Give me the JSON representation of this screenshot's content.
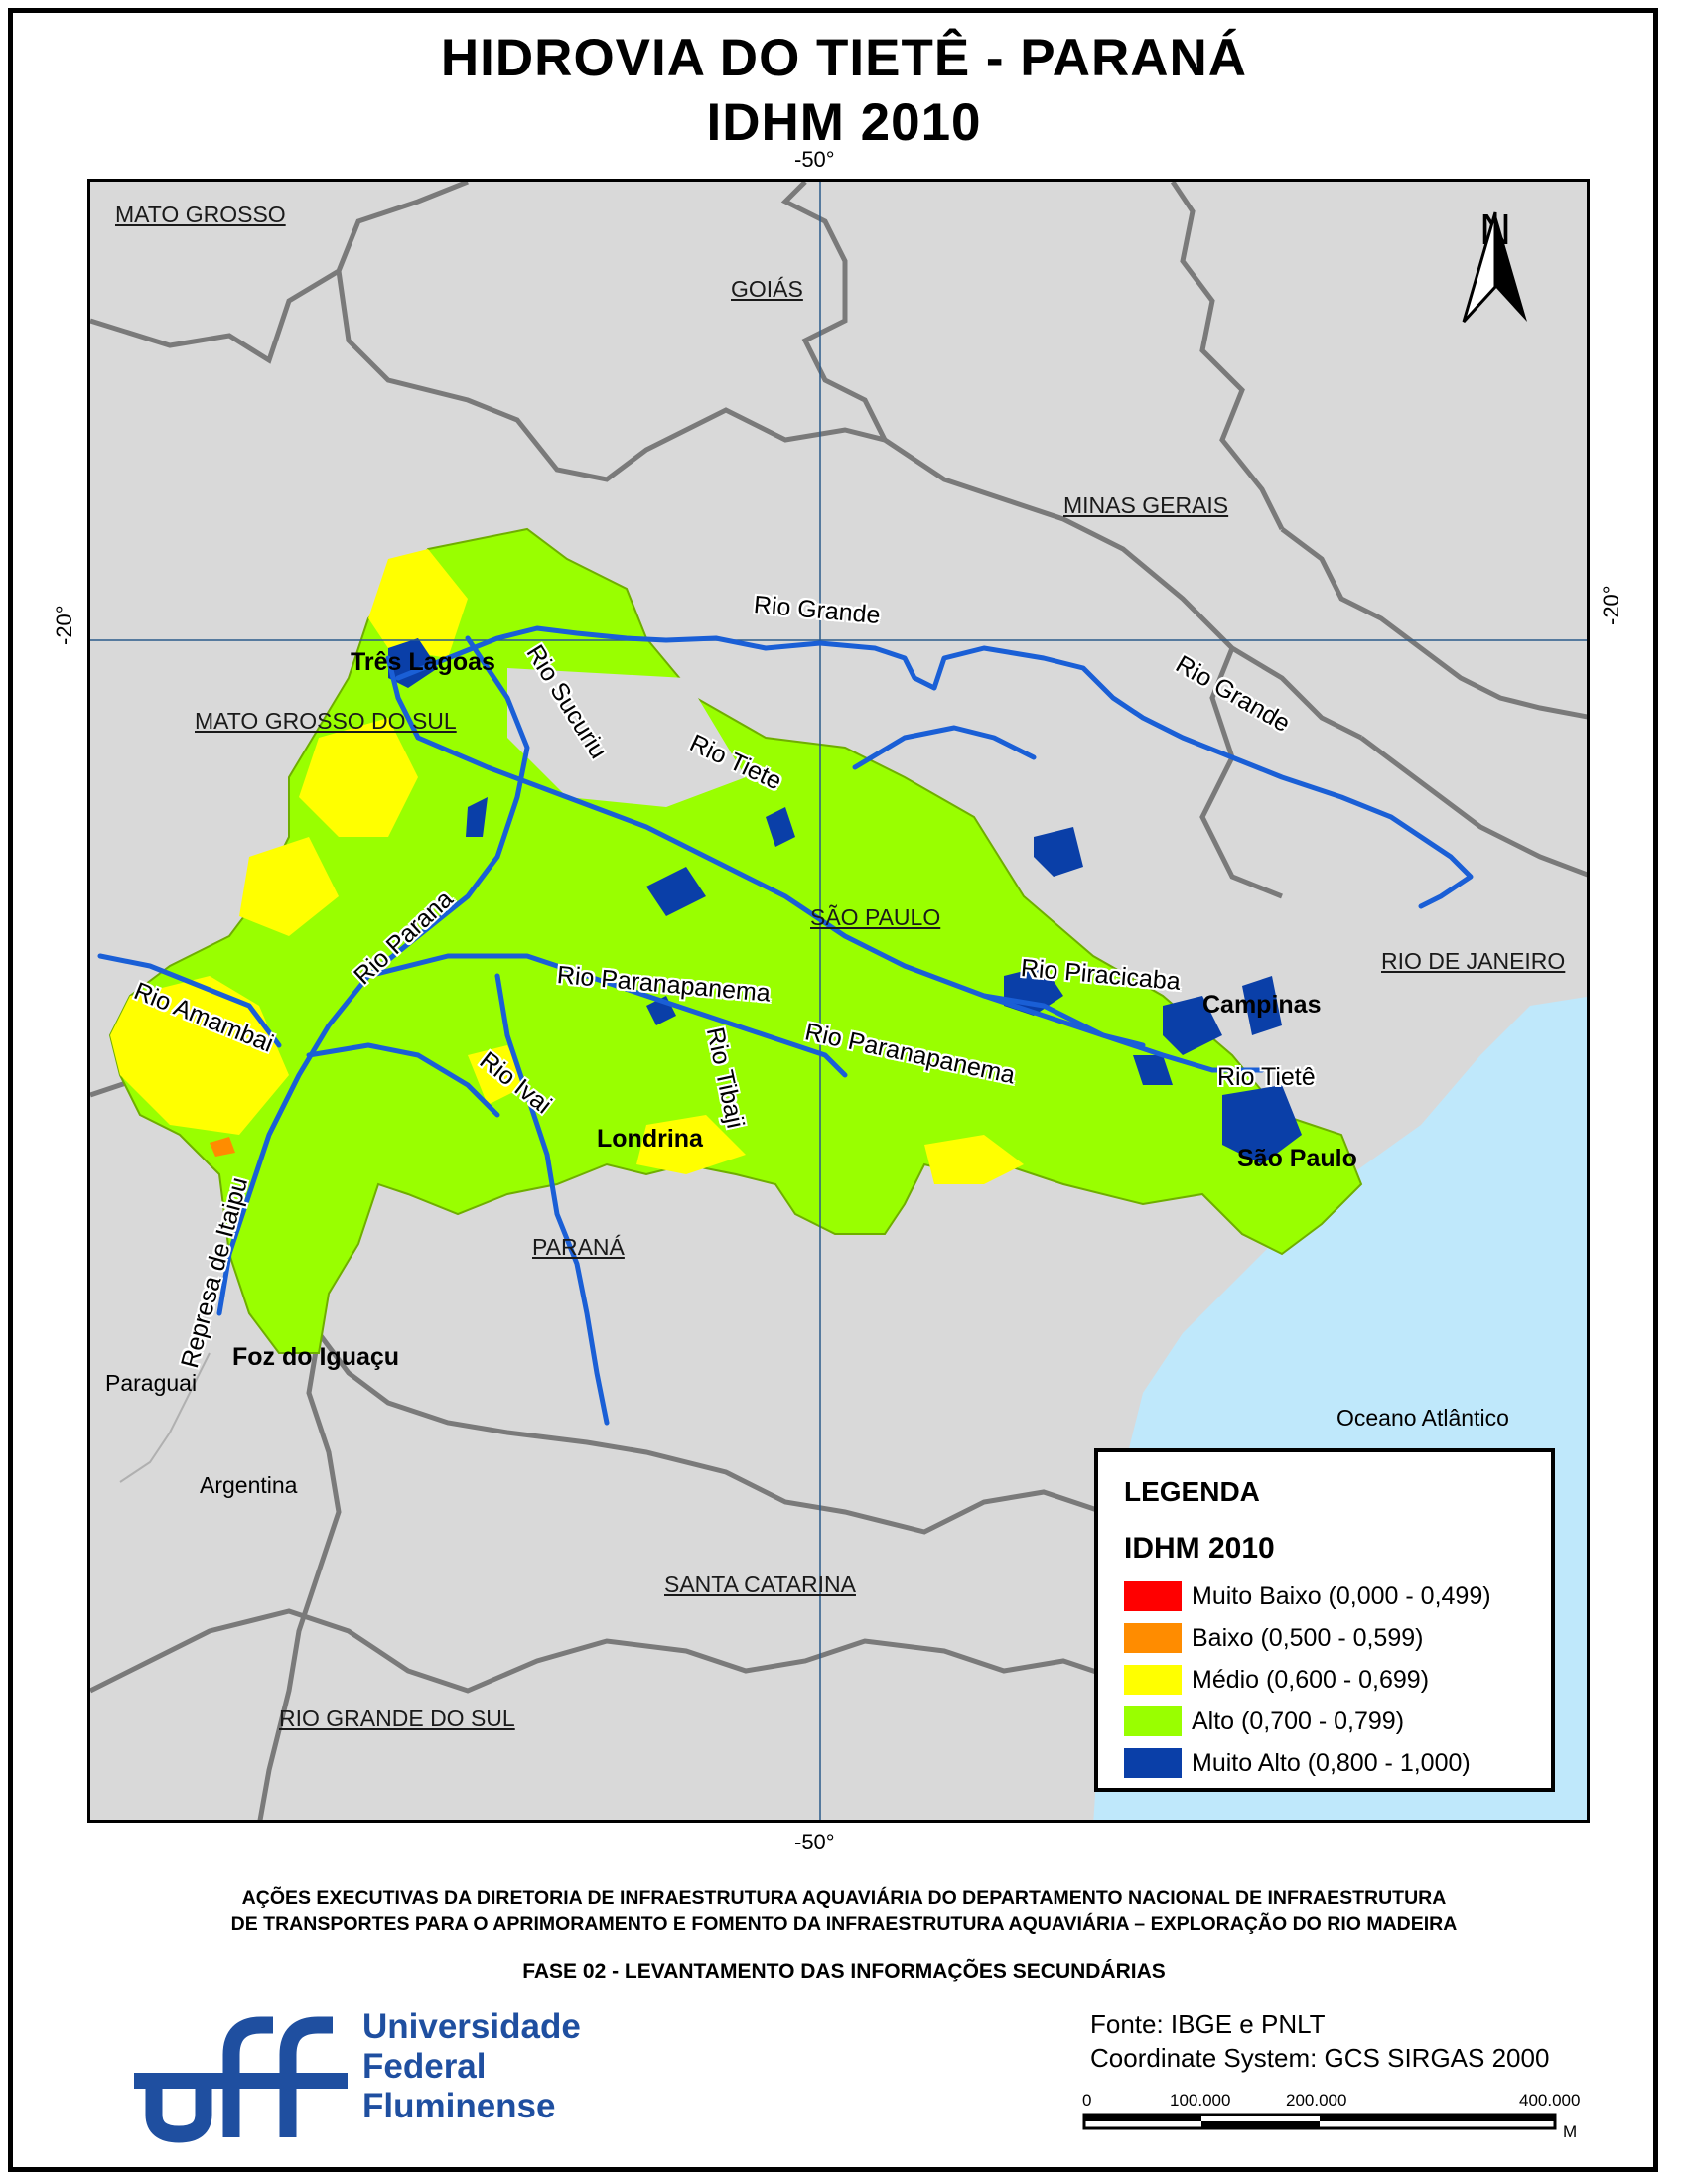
{
  "title_line1": "HIDROVIA DO TIETÊ - PARANÁ",
  "title_line2": "IDHM 2010",
  "graticule": {
    "top_lon": "-50°",
    "bottom_lon": "-50°",
    "left_lat": "-20°",
    "right_lat": "-20°"
  },
  "north_arrow": {
    "letter": "N",
    "icon": "north-arrow-icon"
  },
  "states": {
    "mato_grosso": "MATO GROSSO",
    "goias": "GOIÁS",
    "minas_gerais": "MINAS GERAIS",
    "mato_grosso_do_sul": "MATO GROSSO DO SUL",
    "sao_paulo": "SÃO PAULO",
    "rio_de_janeiro": "RIO DE JANEIRO",
    "parana": "PARANÁ",
    "santa_catarina": "SANTA CATARINA",
    "rio_grande_do_sul": "RIO GRANDE DO SUL"
  },
  "cities": {
    "tres_lagoas": "Três Lagoas",
    "campinas": "Campinas",
    "londrina": "Londrina",
    "sao_paulo": "São Paulo",
    "foz_do_iguacu": "Foz do Iguaçu"
  },
  "places": {
    "paraguai": "Paraguai",
    "argentina": "Argentina",
    "oceano": "Oceano Atlântico"
  },
  "rivers": {
    "rio_grande_1": "Rio Grande",
    "rio_grande_2": "Rio Grande",
    "rio_sucuriu": "Rio Sucuriu",
    "rio_tiete_1": "Rio Tiete",
    "rio_tiete_2": "Rio Tietê",
    "rio_parana": "Rio Parana",
    "rio_amambai": "Rio Amambai",
    "rio_paranapanema_1": "Rio Paranapanema",
    "rio_paranapanema_2": "Rio Paranapanema",
    "rio_ivai": "Rio Ivai",
    "rio_tibaji": "Rio Tibaji",
    "rio_piracicaba": "Rio Piracicaba",
    "represa_itaipu": "Represa de Itaipu"
  },
  "legend": {
    "title": "LEGENDA",
    "subtitle": "IDHM 2010",
    "items": [
      {
        "label": "Muito Baixo (0,000 - 0,499)",
        "color": "#ff0000"
      },
      {
        "label": "Baixo (0,500 - 0,599)",
        "color": "#ff8c00"
      },
      {
        "label": "Médio (0,600 - 0,699)",
        "color": "#ffff00"
      },
      {
        "label": "Alto (0,700 - 0,799)",
        "color": "#99ff00"
      },
      {
        "label": "Muito Alto (0,800 - 1,000)",
        "color": "#0a3fa8"
      }
    ]
  },
  "colors": {
    "background": "#d9d9d9",
    "ocean": "#bfe8fb",
    "river": "#1a5fd6",
    "border": "#7a7a7a"
  },
  "footer": {
    "line1": "AÇÕES EXECUTIVAS DA DIRETORIA DE INFRAESTRUTURA AQUAVIÁRIA DO DEPARTAMENTO NACIONAL DE INFRAESTRUTURA",
    "line2": "DE TRANSPORTES PARA O APRIMORAMENTO E FOMENTO DA INFRAESTRUTURA AQUAVIÁRIA – EXPLORAÇÃO DO RIO MADEIRA",
    "phase": "FASE 02 - LEVANTAMENTO DAS INFORMAÇÕES SECUNDÁRIAS"
  },
  "university": {
    "logo_text": "uff",
    "line1": "Universidade",
    "line2": "Federal",
    "line3": "Fluminense"
  },
  "credits": {
    "source": "Fonte: IBGE e PNLT",
    "crs": "Coordinate System: GCS SIRGAS 2000"
  },
  "scale": {
    "labels": [
      "0",
      "100.000",
      "200.000",
      "400.000"
    ],
    "unit": "M"
  }
}
